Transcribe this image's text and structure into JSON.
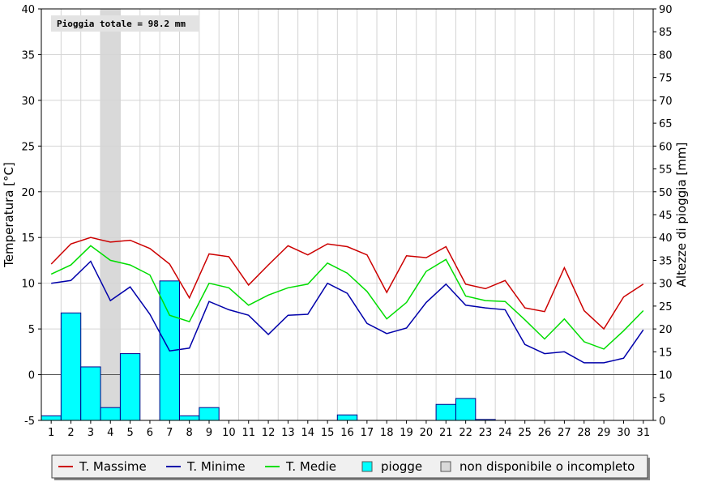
{
  "chart_data": {
    "type": "line+bar",
    "annotation": "Pioggia totale = 98.2 mm",
    "x": [
      1,
      2,
      3,
      4,
      5,
      6,
      7,
      8,
      9,
      10,
      11,
      12,
      13,
      14,
      15,
      16,
      17,
      18,
      19,
      20,
      21,
      22,
      23,
      24,
      25,
      26,
      27,
      28,
      29,
      30,
      31
    ],
    "ylabel_left": "Temperatura [°C]",
    "ylabel_right": "Altezze di pioggia [mm]",
    "ylim_left": [
      -5,
      40
    ],
    "ylim_right": [
      0,
      90
    ],
    "yticks_left": [
      -5,
      0,
      5,
      10,
      15,
      20,
      25,
      30,
      35,
      40
    ],
    "yticks_right": [
      0,
      5,
      10,
      15,
      20,
      25,
      30,
      35,
      40,
      45,
      50,
      55,
      60,
      65,
      70,
      75,
      80,
      85,
      90
    ],
    "grid": true,
    "unavailable_days": [
      4
    ],
    "series": [
      {
        "name": "T. Massime",
        "kind": "line",
        "color": "#cc0000",
        "values": [
          12.1,
          14.3,
          15.0,
          14.5,
          14.7,
          13.8,
          12.1,
          8.4,
          13.2,
          12.9,
          9.8,
          12.0,
          14.1,
          13.1,
          14.3,
          14.0,
          13.1,
          9.0,
          13.0,
          12.8,
          14.0,
          9.9,
          9.4,
          10.3,
          7.3,
          6.9,
          11.7,
          7.0,
          5.0,
          8.5,
          9.9
        ]
      },
      {
        "name": "T. Minime",
        "kind": "line",
        "color": "#0000aa",
        "values": [
          10.0,
          10.3,
          12.4,
          8.1,
          9.6,
          6.6,
          2.6,
          2.9,
          8.0,
          7.1,
          6.5,
          4.4,
          6.5,
          6.6,
          10.0,
          8.9,
          5.6,
          4.5,
          5.1,
          7.9,
          9.9,
          7.6,
          7.3,
          7.1,
          3.3,
          2.3,
          2.5,
          1.3,
          1.3,
          1.8,
          4.9
        ]
      },
      {
        "name": "T. Medie",
        "kind": "line",
        "color": "#00dd00",
        "values": [
          11.0,
          12.0,
          14.1,
          12.5,
          12.0,
          10.9,
          6.5,
          5.8,
          10.0,
          9.5,
          7.6,
          8.7,
          9.5,
          9.9,
          12.2,
          11.1,
          9.1,
          6.1,
          7.9,
          11.3,
          12.6,
          8.6,
          8.1,
          8.0,
          6.0,
          3.9,
          6.1,
          3.6,
          2.8,
          4.8,
          7.0
        ]
      },
      {
        "name": "piogge",
        "kind": "bar",
        "color": "#00ffff",
        "axis": "right",
        "values": [
          1.0,
          23.5,
          11.7,
          2.8,
          14.6,
          0,
          30.5,
          1.0,
          2.8,
          0,
          0,
          0,
          0,
          0,
          0,
          1.2,
          0,
          0,
          0,
          0,
          3.5,
          4.8,
          0.2,
          0,
          0,
          0,
          0,
          0,
          0,
          0,
          0
        ]
      }
    ],
    "legend": {
      "placement": "bottom",
      "items": [
        {
          "label": "T. Massime",
          "color": "#cc0000",
          "marker": "line"
        },
        {
          "label": "T. Minime",
          "color": "#0000aa",
          "marker": "line"
        },
        {
          "label": "T. Medie",
          "color": "#00dd00",
          "marker": "line"
        },
        {
          "label": "piogge",
          "color": "#00ffff",
          "marker": "box"
        },
        {
          "label": "non disponibile o incompleto",
          "color": "#d9d9d9",
          "marker": "box"
        }
      ]
    }
  }
}
